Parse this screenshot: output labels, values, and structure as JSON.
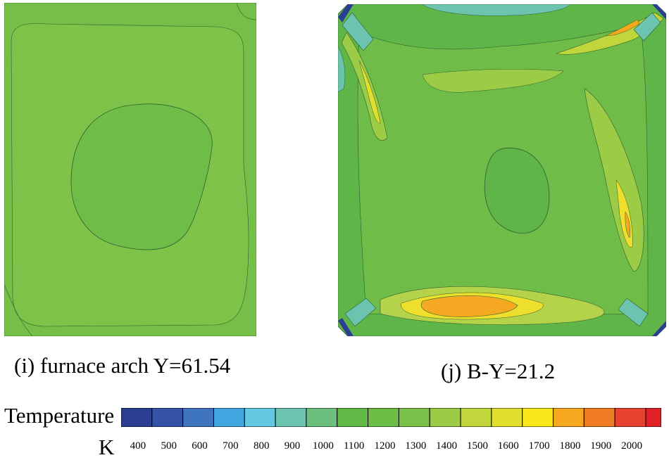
{
  "panels": {
    "i": {
      "caption": "(i) furnace arch Y=61.54"
    },
    "j": {
      "caption": "(j) B-Y=21.2"
    }
  },
  "legend": {
    "title": "Temperature",
    "unit": "K",
    "ticks": [
      "400",
      "500",
      "600",
      "700",
      "800",
      "900",
      "1000",
      "1100",
      "1200",
      "1300",
      "1400",
      "1500",
      "1600",
      "1700",
      "1800",
      "1900",
      "2000"
    ],
    "bands": [
      "#2a3f92",
      "#3452a8",
      "#3f74bf",
      "#3fa6e0",
      "#63c8e2",
      "#6cc4b0",
      "#6cbf7c",
      "#62b946",
      "#6bbd45",
      "#7bc24a",
      "#9ccb45",
      "#c0d63b",
      "#e2de2e",
      "#fbe81c",
      "#f6a91f",
      "#f07b25",
      "#e84130",
      "#e01f26"
    ]
  },
  "colors": {
    "bg_green": "#7ec24a",
    "inner_green": "#6fbd48",
    "edge_green": "#5fb548",
    "yellow_green": "#b4d24a",
    "yellow": "#eddf2c",
    "orange": "#f5a922",
    "cyan": "#6cc4b0",
    "blue": "#2a3f92",
    "line": "#2e5f2e"
  }
}
